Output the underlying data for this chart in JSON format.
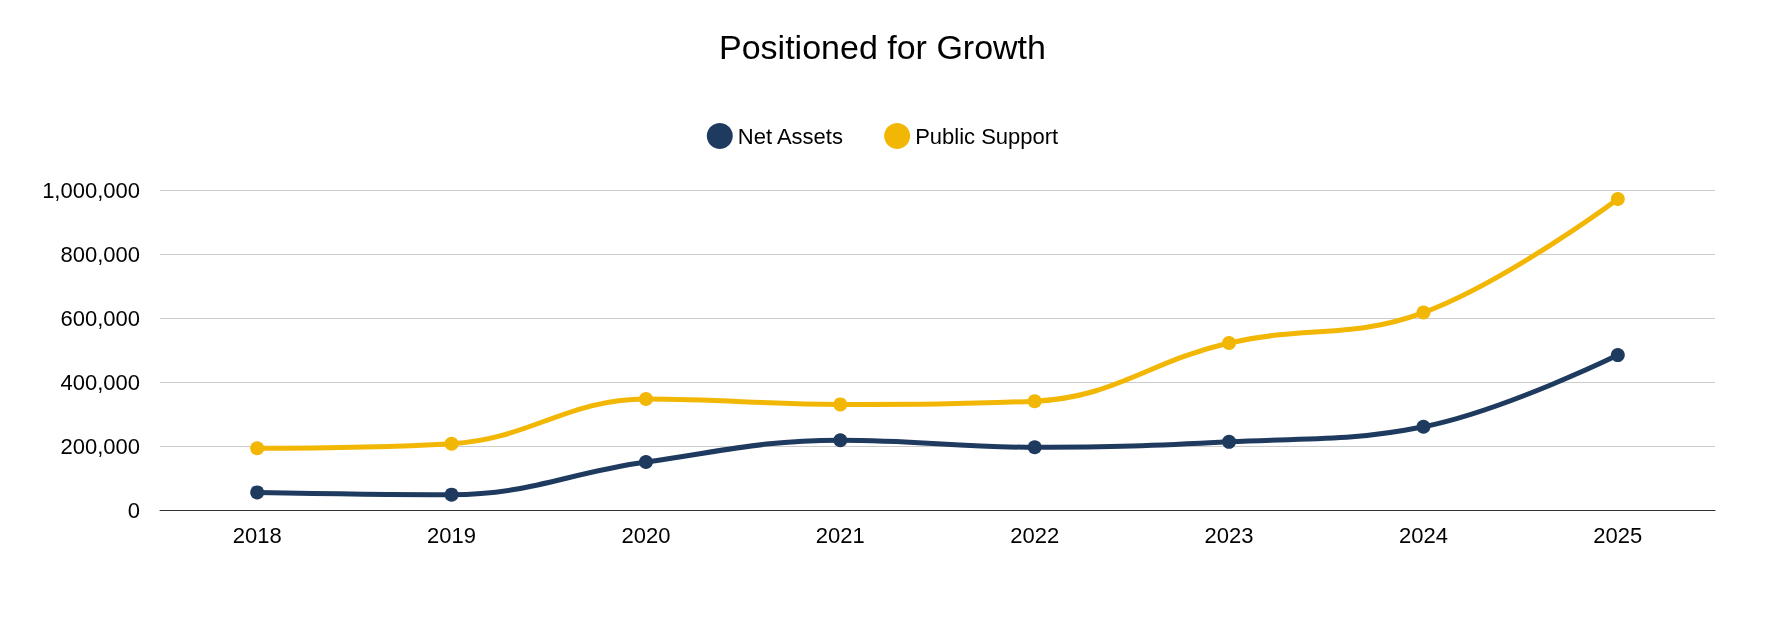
{
  "chart_data": {
    "type": "line",
    "title": "Positioned for Growth",
    "categories": [
      "2018",
      "2019",
      "2020",
      "2021",
      "2022",
      "2023",
      "2024",
      "2025"
    ],
    "series": [
      {
        "name": "Net Assets",
        "color": "#1f3a5f",
        "values": [
          55000,
          48000,
          150000,
          218000,
          196000,
          213000,
          260000,
          484000
        ]
      },
      {
        "name": "Public Support",
        "color": "#f2b705",
        "values": [
          193000,
          207000,
          347000,
          330000,
          340000,
          522000,
          617000,
          972000
        ]
      }
    ],
    "ylim": [
      0,
      1000000
    ],
    "yticks": [
      0,
      {
        "value": 200000,
        "label": "200,000"
      },
      {
        "value": 400000,
        "label": "400,000"
      },
      {
        "value": 600000,
        "label": "600,000"
      },
      {
        "value": 800000,
        "label": "800,000"
      },
      {
        "value": 1000000,
        "label": "1,000,000"
      }
    ],
    "grid": "y",
    "legend": "top",
    "marker": "circle",
    "line_style": "solid"
  }
}
